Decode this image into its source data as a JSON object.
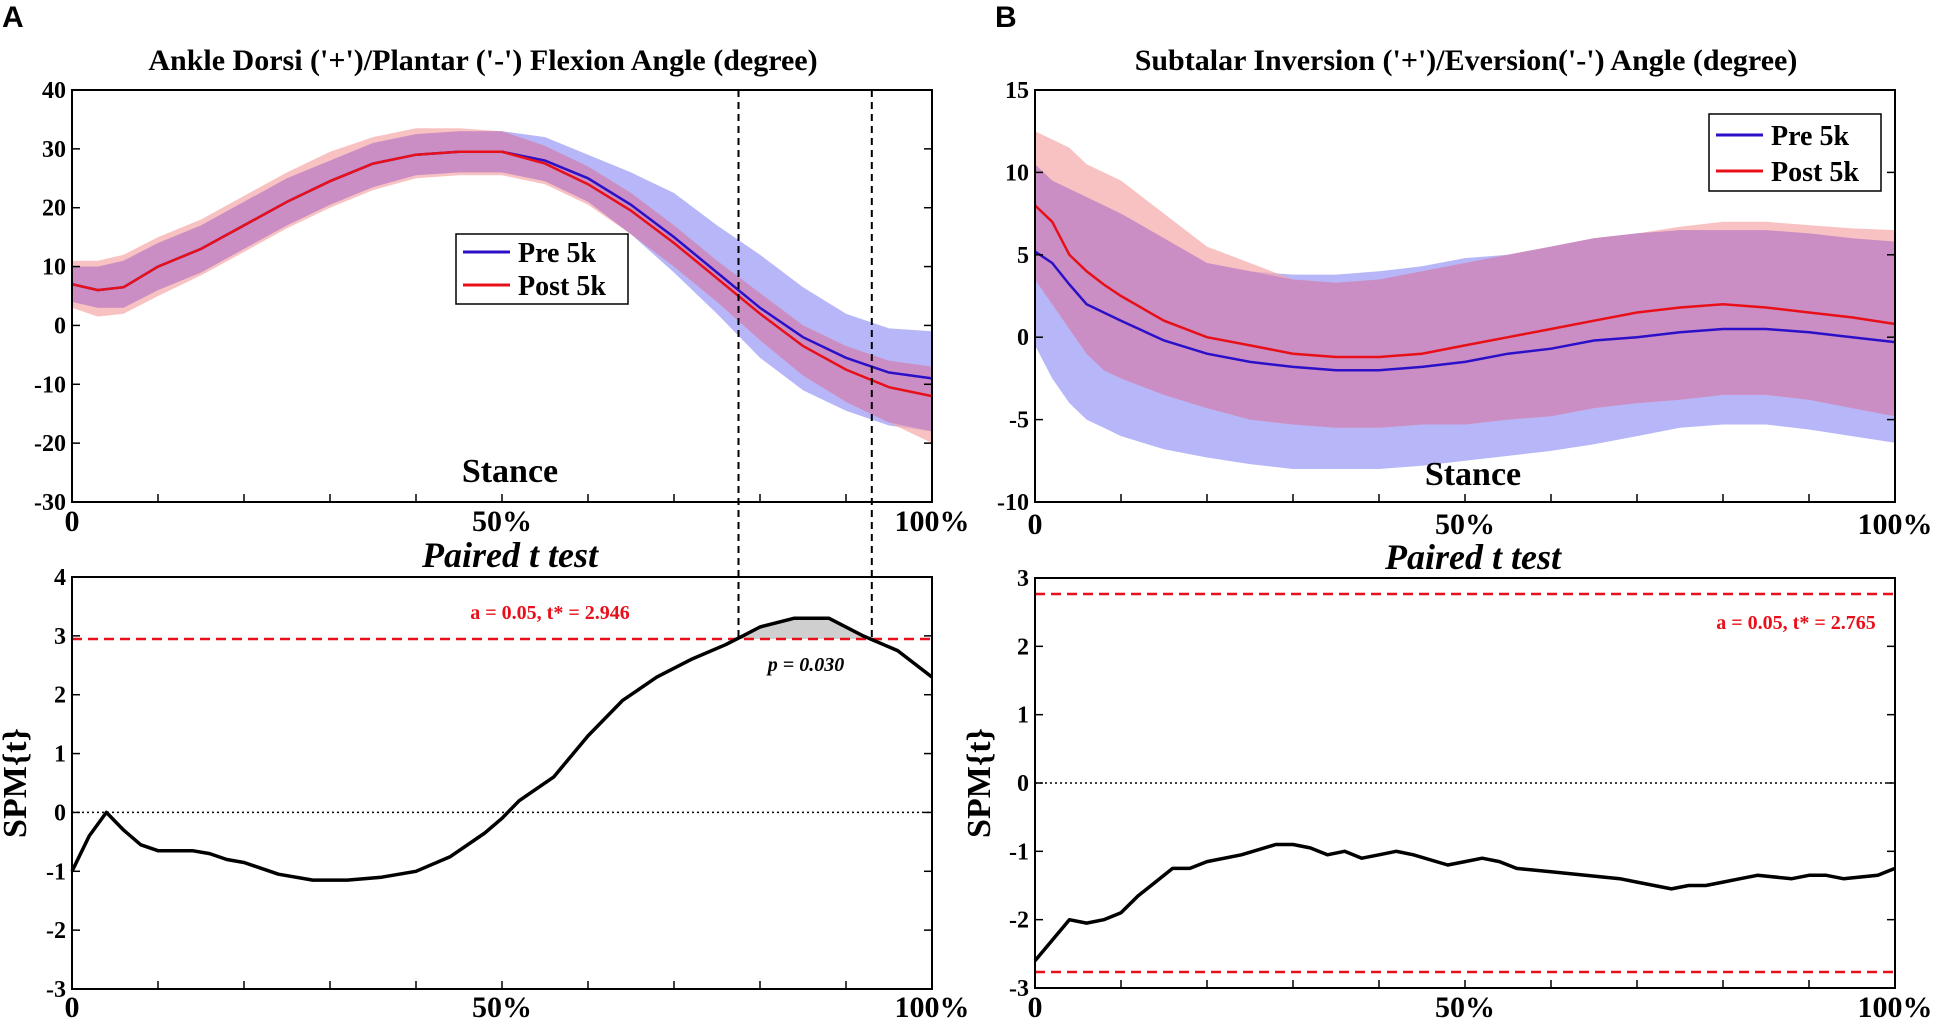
{
  "panels": {
    "A": {
      "label": "A"
    },
    "B": {
      "label": "B"
    }
  },
  "colors": {
    "pre": "#2b10c8",
    "post": "#e81018",
    "pre_band": "#9e9ef6",
    "post_band": "#f6a8a8",
    "overlap_band": "#c88cc4",
    "critical": "#e8101a",
    "spm_line": "#000000"
  },
  "chart_data": [
    {
      "id": "A-top",
      "type": "line",
      "title": "Ankle Dorsi ('+')/Plantar ('-') Flexion Angle (degree)",
      "xlabel": "Stance",
      "ylabel": "",
      "x": [
        0,
        3,
        6,
        10,
        15,
        20,
        25,
        30,
        35,
        40,
        45,
        50,
        55,
        60,
        65,
        70,
        75,
        80,
        85,
        90,
        95,
        100
      ],
      "ylim": [
        -30,
        40
      ],
      "yticks": [
        40,
        30,
        20,
        10,
        0,
        -10,
        -20,
        -30
      ],
      "xtick_labels": [
        "0",
        "50%",
        "100%"
      ],
      "legend": {
        "position": "center",
        "entries": [
          "Pre 5k",
          "Post 5k"
        ]
      },
      "series": [
        {
          "name": "Pre 5k",
          "mean": [
            7,
            6,
            6.5,
            10,
            13,
            17,
            21,
            24.5,
            27.5,
            29,
            29.5,
            29.5,
            28,
            25,
            20.5,
            15,
            9,
            3,
            -2,
            -5.5,
            -8,
            -9
          ],
          "upper": [
            10,
            10,
            11,
            14,
            17,
            21,
            25,
            28,
            31,
            32.5,
            33,
            33,
            32,
            29,
            26,
            22.5,
            17,
            12,
            6.5,
            2,
            -0.5,
            -1
          ],
          "lower": [
            4,
            3,
            3,
            6,
            9,
            13,
            17,
            20.5,
            23.5,
            25.5,
            26,
            26,
            24.5,
            21,
            15.5,
            9,
            2,
            -5.5,
            -11,
            -14.5,
            -17,
            -18
          ]
        },
        {
          "name": "Post 5k",
          "mean": [
            7,
            6,
            6.5,
            10,
            13,
            17,
            21,
            24.5,
            27.5,
            29,
            29.5,
            29.5,
            27.5,
            24,
            19.5,
            14,
            8,
            2,
            -3.5,
            -7.5,
            -10.5,
            -12
          ],
          "upper": [
            11,
            11,
            12,
            15,
            18,
            22,
            26,
            29.5,
            32,
            33.5,
            33.5,
            33,
            30.5,
            27,
            22.5,
            17,
            11,
            5.5,
            0,
            -3.5,
            -6,
            -7
          ],
          "lower": [
            3,
            1.5,
            2,
            5,
            8.5,
            12.5,
            16.5,
            20,
            23,
            25,
            25.5,
            25.5,
            24,
            20.5,
            15.5,
            10,
            4,
            -2.5,
            -8.5,
            -13,
            -16.5,
            -20
          ]
        }
      ],
      "significant_region": [
        77.5,
        93
      ]
    },
    {
      "id": "A-bottom",
      "type": "line",
      "title": "Paired t test",
      "xlabel": "",
      "ylabel": "SPM{t}",
      "ylim": [
        -3,
        4
      ],
      "yticks": [
        4,
        3,
        2,
        1,
        0,
        -1,
        -2,
        -3
      ],
      "xtick_labels": [
        "0",
        "50%",
        "100%"
      ],
      "critical_t": 2.946,
      "critical_label": "a = 0.05, t* = 2.946",
      "p_label": "p = 0.030",
      "x": [
        0,
        2,
        4,
        6,
        8,
        10,
        12,
        14,
        16,
        18,
        20,
        24,
        28,
        32,
        36,
        40,
        44,
        48,
        50,
        52,
        56,
        60,
        64,
        68,
        72,
        76,
        78,
        80,
        84,
        88,
        92,
        96,
        100
      ],
      "values": [
        -1,
        -0.4,
        0,
        -0.3,
        -0.55,
        -0.65,
        -0.65,
        -0.65,
        -0.7,
        -0.8,
        -0.85,
        -1.05,
        -1.15,
        -1.15,
        -1.1,
        -1,
        -0.75,
        -0.35,
        -0.1,
        0.2,
        0.6,
        1.3,
        1.9,
        2.3,
        2.6,
        2.85,
        3.0,
        3.15,
        3.3,
        3.3,
        3.0,
        2.75,
        2.3
      ]
    },
    {
      "id": "B-top",
      "type": "line",
      "title": "Subtalar Inversion ('+')/Eversion('-') Angle (degree)",
      "xlabel": "Stance",
      "ylabel": "",
      "x": [
        0,
        2,
        4,
        6,
        8,
        10,
        15,
        20,
        25,
        30,
        35,
        40,
        45,
        50,
        55,
        60,
        65,
        70,
        75,
        80,
        85,
        90,
        95,
        100
      ],
      "ylim": [
        -10,
        15
      ],
      "yticks": [
        15,
        10,
        5,
        0,
        -5,
        -10
      ],
      "xtick_labels": [
        "0",
        "50%",
        "100%"
      ],
      "legend": {
        "position": "top-right",
        "entries": [
          "Pre 5k",
          "Post 5k"
        ]
      },
      "series": [
        {
          "name": "Pre 5k",
          "mean": [
            5.2,
            4.5,
            3.2,
            2,
            1.5,
            1,
            -0.2,
            -1,
            -1.5,
            -1.8,
            -2,
            -2,
            -1.8,
            -1.5,
            -1,
            -0.7,
            -0.2,
            0,
            0.3,
            0.5,
            0.5,
            0.3,
            0,
            -0.3
          ],
          "upper": [
            10.5,
            9.5,
            9,
            8.5,
            8,
            7.5,
            6,
            4.5,
            4,
            3.8,
            3.8,
            4,
            4.3,
            4.8,
            5,
            5.5,
            6,
            6.3,
            6.5,
            6.5,
            6.5,
            6.3,
            6,
            5.8
          ],
          "lower": [
            -0.5,
            -2.5,
            -4,
            -5,
            -5.5,
            -6,
            -6.8,
            -7.3,
            -7.7,
            -8,
            -8,
            -8,
            -7.8,
            -7.5,
            -7.2,
            -6.9,
            -6.5,
            -6,
            -5.5,
            -5.3,
            -5.3,
            -5.6,
            -6,
            -6.4
          ]
        },
        {
          "name": "Post 5k",
          "mean": [
            8,
            7,
            5,
            4,
            3.2,
            2.5,
            1,
            0,
            -0.5,
            -1,
            -1.2,
            -1.2,
            -1,
            -0.5,
            0,
            0.5,
            1,
            1.5,
            1.8,
            2,
            1.8,
            1.5,
            1.2,
            0.8
          ],
          "upper": [
            12.5,
            12,
            11.5,
            10.5,
            10,
            9.5,
            7.5,
            5.5,
            4.5,
            3.5,
            3.3,
            3.5,
            4,
            4.5,
            5,
            5.5,
            6,
            6.3,
            6.7,
            7,
            7,
            6.8,
            6.6,
            6.5
          ],
          "lower": [
            3.5,
            2,
            0.5,
            -1,
            -2,
            -2.5,
            -3.5,
            -4.3,
            -5,
            -5.3,
            -5.5,
            -5.5,
            -5.3,
            -5.3,
            -5,
            -4.8,
            -4.3,
            -4,
            -3.8,
            -3.5,
            -3.5,
            -3.8,
            -4.3,
            -4.8
          ]
        }
      ]
    },
    {
      "id": "B-bottom",
      "type": "line",
      "title": "Paired t test",
      "xlabel": "",
      "ylabel": "SPM{t}",
      "ylim": [
        -3,
        3
      ],
      "yticks": [
        3,
        2,
        1,
        0,
        -1,
        -2,
        -3
      ],
      "xtick_labels": [
        "0",
        "50%",
        "100%"
      ],
      "critical_t": 2.765,
      "critical_label": "a = 0.05, t* = 2.765",
      "x": [
        0,
        2,
        4,
        6,
        8,
        10,
        12,
        14,
        16,
        18,
        20,
        24,
        28,
        30,
        32,
        34,
        36,
        38,
        40,
        42,
        44,
        48,
        50,
        52,
        54,
        56,
        60,
        64,
        68,
        70,
        72,
        74,
        76,
        78,
        80,
        82,
        84,
        88,
        90,
        92,
        94,
        98,
        100
      ],
      "values": [
        -2.6,
        -2.3,
        -2,
        -2.05,
        -2,
        -1.9,
        -1.65,
        -1.45,
        -1.25,
        -1.25,
        -1.15,
        -1.05,
        -0.9,
        -0.9,
        -0.95,
        -1.05,
        -1.0,
        -1.1,
        -1.05,
        -1.0,
        -1.05,
        -1.2,
        -1.15,
        -1.1,
        -1.15,
        -1.25,
        -1.3,
        -1.35,
        -1.4,
        -1.45,
        -1.5,
        -1.55,
        -1.5,
        -1.5,
        -1.45,
        -1.4,
        -1.35,
        -1.4,
        -1.35,
        -1.35,
        -1.4,
        -1.35,
        -1.25
      ]
    }
  ]
}
